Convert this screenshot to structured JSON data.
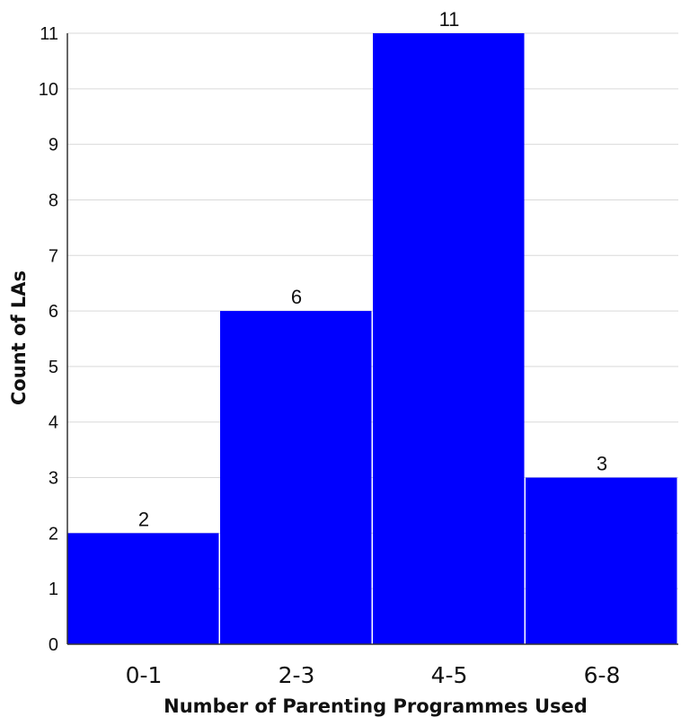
{
  "chart_data": {
    "type": "bar",
    "title": "",
    "xlabel": "Number of Parenting Programmes Used",
    "ylabel": "Count of LAs",
    "categories": [
      "0-1",
      "2-3",
      "4-5",
      "6-8"
    ],
    "values": [
      2,
      6,
      11,
      3
    ],
    "ylim": [
      0,
      11
    ],
    "yticks": [
      0,
      1,
      2,
      3,
      4,
      5,
      6,
      7,
      8,
      9,
      10,
      11
    ],
    "grid": true,
    "legend": "none",
    "colors": {
      "bar": "#0000ff",
      "grid": "#d9d9d9",
      "axis": "#333333",
      "background": "#ffffff"
    }
  }
}
